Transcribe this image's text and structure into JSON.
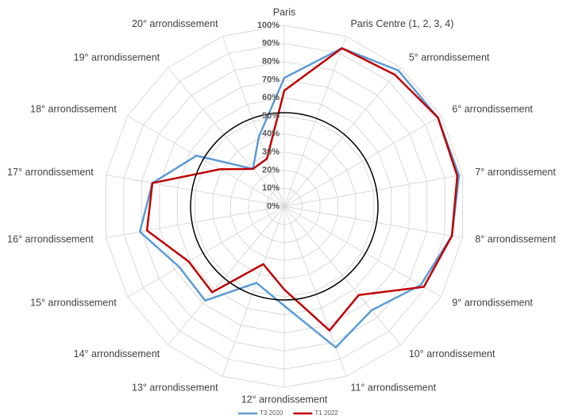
{
  "chart_data": {
    "type": "radar",
    "categories": [
      "Paris",
      "Paris Centre (1, 2, 3, 4)",
      "5° arrondissement",
      "6° arrondissement",
      "7° arrondissement",
      "8° arrondissement",
      "9° arrondissement",
      "10° arrondissement",
      "11° arrondissement",
      "12° arrondissement",
      "13° arrondissement",
      "14° arrondissement",
      "15° arrondissement",
      "16° arrondissement",
      "17° arrondissement",
      "18° arrondissement",
      "19° arrondissement",
      "20° arrondissement"
    ],
    "series": [
      {
        "name": "T3 2020",
        "color": "#5b9bd5",
        "values": [
          71,
          93,
          98,
          98,
          98,
          94,
          87,
          75,
          83,
          55,
          45,
          68,
          67,
          81,
          74,
          56,
          27,
          41
        ]
      },
      {
        "name": "T1 2022",
        "color": "#c00000",
        "values": [
          64,
          93,
          95,
          98,
          97,
          94,
          89,
          64,
          73,
          46,
          34,
          62,
          61,
          77,
          74,
          41,
          27,
          28
        ]
      }
    ],
    "ylim": [
      0,
      100
    ],
    "yticks": [
      {
        "value": 0,
        "label": "0%"
      },
      {
        "value": 10,
        "label": "10%"
      },
      {
        "value": 20,
        "label": "20%"
      },
      {
        "value": 30,
        "label": "30%"
      },
      {
        "value": 40,
        "label": "40%"
      },
      {
        "value": 50,
        "label": "50%"
      },
      {
        "value": 60,
        "label": "60%"
      },
      {
        "value": 70,
        "label": "70%"
      },
      {
        "value": 80,
        "label": "80%"
      },
      {
        "value": 90,
        "label": "90%"
      },
      {
        "value": 100,
        "label": "100%"
      }
    ],
    "grid": true,
    "legend": "bottom"
  }
}
